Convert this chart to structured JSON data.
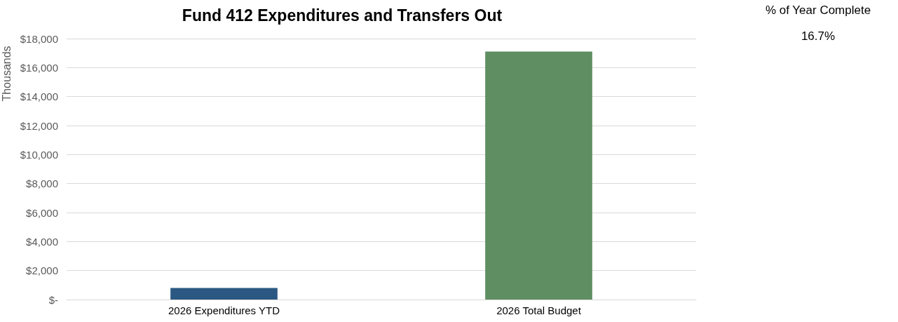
{
  "chart_data": {
    "type": "bar",
    "title": "Fund 412 Expenditures and Transfers Out",
    "ylabel": "Thousands",
    "categories": [
      "2026 Expenditures YTD",
      "2026 Total Budget"
    ],
    "values": [
      800,
      17100
    ],
    "colors": [
      "#2a5882",
      "#5e8e61"
    ],
    "ylim": [
      0,
      18000
    ],
    "yticks": [
      {
        "value": 0,
        "label": "$-"
      },
      {
        "value": 2000,
        "label": "$2,000"
      },
      {
        "value": 4000,
        "label": "$4,000"
      },
      {
        "value": 6000,
        "label": "$6,000"
      },
      {
        "value": 8000,
        "label": "$8,000"
      },
      {
        "value": 10000,
        "label": "$10,000"
      },
      {
        "value": 12000,
        "label": "$12,000"
      },
      {
        "value": 14000,
        "label": "$14,000"
      },
      {
        "value": 16000,
        "label": "$16,000"
      },
      {
        "value": 18000,
        "label": "$18,000"
      }
    ],
    "grid": "y",
    "annotations": [
      "% of Year Complete",
      "16.7%"
    ]
  }
}
